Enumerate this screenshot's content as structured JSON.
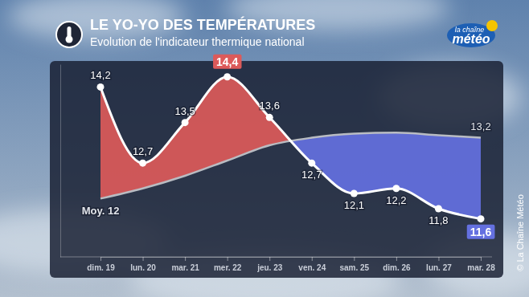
{
  "chart_data": {
    "type": "line",
    "title": "LE YO-YO DES TEMPÉRATURES",
    "subtitle": "Evolution de l'indicateur thermique national",
    "annotations": [
      "la chaîne",
      "météo",
      "© La Chaîne Météo"
    ],
    "categories": [
      "dim. 19",
      "lun. 20",
      "mar. 21",
      "mer. 22",
      "jeu. 23",
      "ven. 24",
      "sam. 25",
      "dim. 26",
      "lun. 27",
      "mar. 28"
    ],
    "series": [
      {
        "color": "#ffffff",
        "marker": "circle",
        "line_style": "solid",
        "values": [
          14.2,
          12.7,
          13.5,
          14.4,
          13.6,
          12.7,
          12.1,
          12.2,
          11.8,
          11.6
        ],
        "value_labels": [
          "14,2",
          "12,7",
          "13,5",
          "14,4",
          "13,6",
          "12,7",
          "12,1",
          "12,2",
          "11,8",
          "11,6"
        ]
      },
      {
        "color": "#b9bcc2",
        "line_style": "solid",
        "values": [
          12,
          12.2,
          12.45,
          12.75,
          13.05,
          13.2,
          13.28,
          13.3,
          13.25,
          13.2
        ],
        "value_labels": [
          "Moy. 12",
          null,
          null,
          null,
          null,
          null,
          null,
          null,
          null,
          "13,2"
        ]
      }
    ],
    "colors": [
      "#dc5a5a",
      "#6470e0"
    ],
    "ylim": [
      10.85,
      14.65
    ],
    "tick_labels": "x",
    "data_labels": true,
    "grid": false
  }
}
